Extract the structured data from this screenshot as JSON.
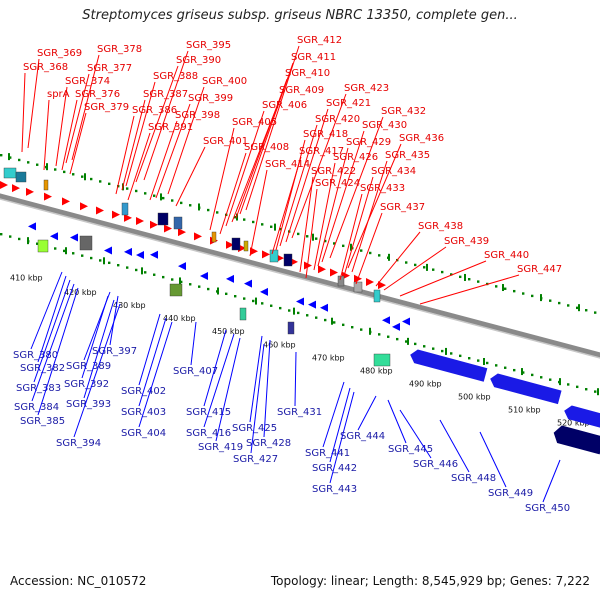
{
  "title": "Streptomyces griseus subsp. griseus NBRC 13350, complete gen...",
  "footer": {
    "accession": "Accession: NC_010572",
    "summary": "Topology: linear; Length: 8,545,929 bp; Genes: 7,222"
  },
  "colors": {
    "forward": "#ff0000",
    "reverse": "#0000ff",
    "axis": "#808080",
    "ticks": "#008000"
  },
  "scale_labels": [
    "410 kbp",
    "420 kbp",
    "430 kbp",
    "440 kbp",
    "450 kbp",
    "460 kbp",
    "470 kbp",
    "480 kbp",
    "490 kbp",
    "500 kbp",
    "510 kbp",
    "520 kbp"
  ],
  "top_labels": [
    "SGR_369",
    "SGR_368",
    "SGR_378",
    "SGR_377",
    "SGR_374",
    "sprA",
    "SGR_376",
    "SGR_379",
    "SGR_395",
    "SGR_390",
    "SGR_388",
    "SGR_400",
    "SGR_387",
    "SGR_386",
    "SGR_399",
    "SGR_391",
    "SGR_398",
    "SGR_401",
    "SGR_412",
    "SGR_411",
    "SGR_410",
    "SGR_409",
    "SGR_406",
    "SGR_405",
    "SGR_408",
    "SGR_423",
    "SGR_421",
    "SGR_420",
    "SGR_418",
    "SGR_417",
    "SGR_414",
    "SGR_432",
    "SGR_430",
    "SGR_429",
    "SGR_436",
    "SGR_426",
    "SGR_422",
    "SGR_435",
    "SGR_434",
    "SGR_424",
    "SGR_433",
    "SGR_437",
    "SGR_438",
    "SGR_439",
    "SGR_440",
    "SGR_447"
  ],
  "bottom_labels": [
    "SGR_380",
    "SGR_382",
    "SGR_383",
    "SGR_384",
    "SGR_385",
    "SGR_389",
    "SGR_397",
    "SGR_392",
    "SGR_393",
    "SGR_394",
    "SGR_402",
    "SGR_403",
    "SGR_404",
    "SGR_407",
    "SGR_415",
    "SGR_416",
    "SGR_419",
    "SGR_425",
    "SGR_428",
    "SGR_427",
    "SGR_431",
    "SGR_441",
    "SGR_442",
    "SGR_443",
    "SGR_444",
    "SGR_445",
    "SGR_446",
    "SGR_448",
    "SGR_449",
    "SGR_450"
  ]
}
